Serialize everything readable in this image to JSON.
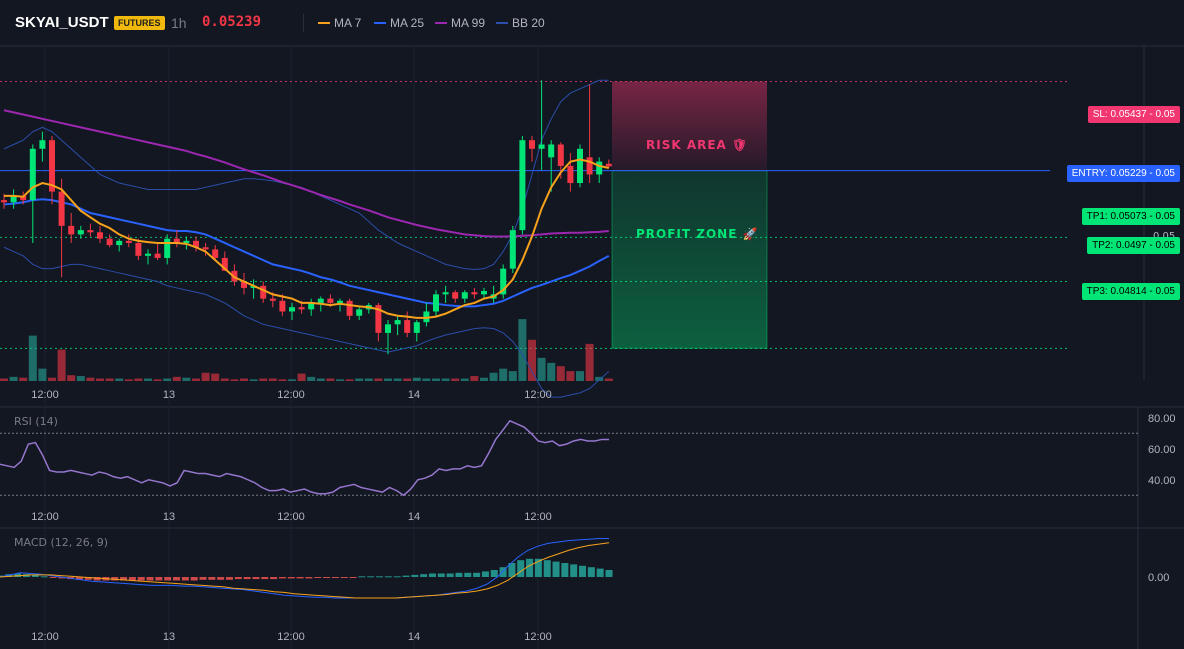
{
  "header": {
    "symbol": "SKYAI_USDT",
    "badge": "FUTURES",
    "timeframe": "1h",
    "last_price": "0.05239",
    "legend": [
      {
        "label": "MA 7",
        "color": "#f7a21b"
      },
      {
        "label": "MA 25",
        "color": "#2962ff"
      },
      {
        "label": "MA 99",
        "color": "#9c27b0"
      },
      {
        "label": "BB 20",
        "color": "#2a4eaa"
      }
    ]
  },
  "levels": {
    "sl": {
      "label": "SL: 0.05437",
      "suffix": "- 0.05",
      "value": 0.05437,
      "color": "#f23670"
    },
    "entry": {
      "label": "ENTRY: 0.05229",
      "suffix": "- 0.05",
      "value": 0.05229,
      "color": "#2962ff"
    },
    "tp1": {
      "label": "TP1: 0.05073",
      "suffix": "- 0.05",
      "value": 0.05073,
      "color": "#00e676"
    },
    "tp2": {
      "label": "TP2: 0.0497",
      "suffix": "- 0.05",
      "value": 0.0497,
      "color": "#00e676"
    },
    "tp3": {
      "label": "TP3: 0.04814",
      "suffix": "- 0.05",
      "value": 0.04814,
      "color": "#00e676"
    }
  },
  "zones": {
    "risk": "RISK AREA 🛡",
    "profit": "PROFIT ZONE 🚀"
  },
  "axis_labels": {
    "main_partial": "0.05"
  },
  "x_ticks": [
    "12:00",
    "13",
    "12:00",
    "14",
    "12:00"
  ],
  "rsi": {
    "label": "RSI (14)",
    "ticks": [
      "80.00",
      "60.00",
      "40.00"
    ]
  },
  "macd": {
    "label": "MACD (12, 26, 9)",
    "ticks": [
      "0.00"
    ]
  },
  "colors": {
    "up": "#26a69a",
    "up_bright": "#00e676",
    "down": "#f23645",
    "bg": "#131722"
  },
  "chart_data": {
    "type": "candlestick",
    "ylim": [
      0.0474,
      0.0552
    ],
    "candles": [
      {
        "o": 0.0516,
        "h": 0.05175,
        "l": 0.0514,
        "c": 0.05155
      },
      {
        "o": 0.05155,
        "h": 0.05185,
        "l": 0.0514,
        "c": 0.0517
      },
      {
        "o": 0.0517,
        "h": 0.0518,
        "l": 0.0515,
        "c": 0.0516
      },
      {
        "o": 0.0516,
        "h": 0.0529,
        "l": 0.0506,
        "c": 0.0528
      },
      {
        "o": 0.0528,
        "h": 0.0532,
        "l": 0.0525,
        "c": 0.053
      },
      {
        "o": 0.053,
        "h": 0.0531,
        "l": 0.0515,
        "c": 0.0518
      },
      {
        "o": 0.0518,
        "h": 0.0521,
        "l": 0.0498,
        "c": 0.051
      },
      {
        "o": 0.051,
        "h": 0.0513,
        "l": 0.0506,
        "c": 0.0508
      },
      {
        "o": 0.0508,
        "h": 0.051,
        "l": 0.0507,
        "c": 0.0509
      },
      {
        "o": 0.0509,
        "h": 0.05105,
        "l": 0.05075,
        "c": 0.05085
      },
      {
        "o": 0.05085,
        "h": 0.051,
        "l": 0.0506,
        "c": 0.0507
      },
      {
        "o": 0.0507,
        "h": 0.0508,
        "l": 0.0505,
        "c": 0.05055
      },
      {
        "o": 0.05055,
        "h": 0.0507,
        "l": 0.0504,
        "c": 0.05065
      },
      {
        "o": 0.05065,
        "h": 0.0508,
        "l": 0.0505,
        "c": 0.0506
      },
      {
        "o": 0.0506,
        "h": 0.0507,
        "l": 0.0502,
        "c": 0.0503
      },
      {
        "o": 0.0503,
        "h": 0.05045,
        "l": 0.0501,
        "c": 0.05035
      },
      {
        "o": 0.05035,
        "h": 0.0506,
        "l": 0.0502,
        "c": 0.05025
      },
      {
        "o": 0.05025,
        "h": 0.0508,
        "l": 0.0501,
        "c": 0.0507
      },
      {
        "o": 0.0507,
        "h": 0.0509,
        "l": 0.0505,
        "c": 0.0506
      },
      {
        "o": 0.0506,
        "h": 0.05075,
        "l": 0.05045,
        "c": 0.05065
      },
      {
        "o": 0.05065,
        "h": 0.05075,
        "l": 0.0504,
        "c": 0.0505
      },
      {
        "o": 0.0505,
        "h": 0.0506,
        "l": 0.0503,
        "c": 0.05045
      },
      {
        "o": 0.05045,
        "h": 0.05055,
        "l": 0.0502,
        "c": 0.05025
      },
      {
        "o": 0.05025,
        "h": 0.0504,
        "l": 0.05,
        "c": 0.04995
      },
      {
        "o": 0.04995,
        "h": 0.0501,
        "l": 0.0496,
        "c": 0.0497
      },
      {
        "o": 0.0497,
        "h": 0.0499,
        "l": 0.0494,
        "c": 0.04955
      },
      {
        "o": 0.04955,
        "h": 0.04975,
        "l": 0.0493,
        "c": 0.0496
      },
      {
        "o": 0.0496,
        "h": 0.0497,
        "l": 0.0492,
        "c": 0.0493
      },
      {
        "o": 0.0493,
        "h": 0.04945,
        "l": 0.0491,
        "c": 0.04925
      },
      {
        "o": 0.04925,
        "h": 0.0494,
        "l": 0.0489,
        "c": 0.049
      },
      {
        "o": 0.049,
        "h": 0.0492,
        "l": 0.0488,
        "c": 0.0491
      },
      {
        "o": 0.0491,
        "h": 0.04925,
        "l": 0.04895,
        "c": 0.04905
      },
      {
        "o": 0.04905,
        "h": 0.0493,
        "l": 0.0489,
        "c": 0.0492
      },
      {
        "o": 0.0492,
        "h": 0.04935,
        "l": 0.049,
        "c": 0.0493
      },
      {
        "o": 0.0493,
        "h": 0.0494,
        "l": 0.0491,
        "c": 0.0492
      },
      {
        "o": 0.0492,
        "h": 0.0493,
        "l": 0.049,
        "c": 0.04925
      },
      {
        "o": 0.04925,
        "h": 0.0493,
        "l": 0.0488,
        "c": 0.0489
      },
      {
        "o": 0.0489,
        "h": 0.0491,
        "l": 0.0488,
        "c": 0.04905
      },
      {
        "o": 0.04905,
        "h": 0.0492,
        "l": 0.04895,
        "c": 0.04915
      },
      {
        "o": 0.04915,
        "h": 0.0492,
        "l": 0.0483,
        "c": 0.0485
      },
      {
        "o": 0.0485,
        "h": 0.0488,
        "l": 0.048,
        "c": 0.0487
      },
      {
        "o": 0.0487,
        "h": 0.0489,
        "l": 0.04845,
        "c": 0.0488
      },
      {
        "o": 0.0488,
        "h": 0.049,
        "l": 0.0484,
        "c": 0.0485
      },
      {
        "o": 0.0485,
        "h": 0.0488,
        "l": 0.0483,
        "c": 0.04875
      },
      {
        "o": 0.04875,
        "h": 0.0492,
        "l": 0.04865,
        "c": 0.049
      },
      {
        "o": 0.049,
        "h": 0.0495,
        "l": 0.0489,
        "c": 0.0494
      },
      {
        "o": 0.0494,
        "h": 0.0496,
        "l": 0.0492,
        "c": 0.04945
      },
      {
        "o": 0.04945,
        "h": 0.0495,
        "l": 0.0492,
        "c": 0.0493
      },
      {
        "o": 0.0493,
        "h": 0.0495,
        "l": 0.0492,
        "c": 0.04945
      },
      {
        "o": 0.04945,
        "h": 0.04955,
        "l": 0.0493,
        "c": 0.0494
      },
      {
        "o": 0.0494,
        "h": 0.04955,
        "l": 0.0493,
        "c": 0.04948
      },
      {
        "o": 0.0493,
        "h": 0.0496,
        "l": 0.0492,
        "c": 0.0494
      },
      {
        "o": 0.0494,
        "h": 0.0501,
        "l": 0.0493,
        "c": 0.05
      },
      {
        "o": 0.05,
        "h": 0.051,
        "l": 0.0499,
        "c": 0.0509
      },
      {
        "o": 0.0509,
        "h": 0.0531,
        "l": 0.0508,
        "c": 0.053
      },
      {
        "o": 0.053,
        "h": 0.0531,
        "l": 0.0525,
        "c": 0.0528
      },
      {
        "o": 0.0528,
        "h": 0.0544,
        "l": 0.0523,
        "c": 0.0529
      },
      {
        "o": 0.0526,
        "h": 0.053,
        "l": 0.0518,
        "c": 0.0529
      },
      {
        "o": 0.0529,
        "h": 0.05295,
        "l": 0.0521,
        "c": 0.0524
      },
      {
        "o": 0.0524,
        "h": 0.0527,
        "l": 0.0518,
        "c": 0.052
      },
      {
        "o": 0.052,
        "h": 0.0529,
        "l": 0.0519,
        "c": 0.0528
      },
      {
        "o": 0.0526,
        "h": 0.0543,
        "l": 0.052,
        "c": 0.0522
      },
      {
        "o": 0.0522,
        "h": 0.0526,
        "l": 0.052,
        "c": 0.0525
      },
      {
        "o": 0.05245,
        "h": 0.05255,
        "l": 0.05235,
        "c": 0.05239
      }
    ],
    "volume": [
      3,
      5,
      4,
      55,
      15,
      4,
      38,
      7,
      6,
      4,
      3,
      3,
      3,
      2,
      3,
      3,
      2,
      3,
      5,
      4,
      3,
      10,
      9,
      3,
      2,
      3,
      2,
      3,
      3,
      2,
      2,
      9,
      5,
      3,
      3,
      2,
      2,
      3,
      3,
      3,
      3,
      3,
      3,
      4,
      3,
      3,
      3,
      3,
      3,
      6,
      4,
      10,
      15,
      12,
      75,
      50,
      28,
      22,
      18,
      12,
      12,
      45,
      5,
      3
    ],
    "ma7": [
      0.0517,
      0.0517,
      0.05168,
      0.0519,
      0.052,
      0.05195,
      0.05185,
      0.0516,
      0.05135,
      0.0512,
      0.05105,
      0.05095,
      0.0508,
      0.0507,
      0.05065,
      0.05062,
      0.0506,
      0.0506,
      0.0506,
      0.05058,
      0.0505,
      0.0504,
      0.0502,
      0.05,
      0.0498,
      0.0497,
      0.0496,
      0.0495,
      0.0494,
      0.04935,
      0.0493,
      0.0492,
      0.0492,
      0.04918,
      0.04915,
      0.04918,
      0.04915,
      0.04912,
      0.0491,
      0.04905,
      0.04895,
      0.0489,
      0.04888,
      0.04885,
      0.04885,
      0.04888,
      0.04895,
      0.04905,
      0.04915,
      0.0492,
      0.0493,
      0.04935,
      0.0495,
      0.04975,
      0.0502,
      0.05075,
      0.0514,
      0.0519,
      0.05225,
      0.0525,
      0.05255,
      0.0525,
      0.0524,
      0.05235
    ],
    "ma25": [
      0.0515,
      0.05152,
      0.05155,
      0.0516,
      0.05162,
      0.0516,
      0.05155,
      0.0515,
      0.0514,
      0.0513,
      0.05125,
      0.0512,
      0.05115,
      0.0511,
      0.05105,
      0.051,
      0.05095,
      0.0509,
      0.05088,
      0.05088,
      0.05085,
      0.0508,
      0.0507,
      0.0506,
      0.0505,
      0.0504,
      0.0503,
      0.0502,
      0.0501,
      0.05005,
      0.05,
      0.04995,
      0.04988,
      0.0498,
      0.04975,
      0.04968,
      0.0496,
      0.04955,
      0.0495,
      0.04945,
      0.0494,
      0.04935,
      0.0493,
      0.04925,
      0.0492,
      0.04918,
      0.04915,
      0.04913,
      0.04912,
      0.04912,
      0.04915,
      0.04918,
      0.04925,
      0.04935,
      0.04945,
      0.04955,
      0.04962,
      0.0497,
      0.04978,
      0.04985,
      0.04995,
      0.05005,
      0.05018,
      0.0503
    ],
    "ma99": [
      0.0537,
      0.05365,
      0.0536,
      0.05355,
      0.0535,
      0.05345,
      0.0534,
      0.05335,
      0.0533,
      0.05325,
      0.0532,
      0.05315,
      0.0531,
      0.05305,
      0.053,
      0.05295,
      0.0529,
      0.05285,
      0.0528,
      0.05275,
      0.05268,
      0.05262,
      0.05255,
      0.05248,
      0.0524,
      0.05232,
      0.05225,
      0.05218,
      0.0521,
      0.05202,
      0.05195,
      0.05188,
      0.0518,
      0.05172,
      0.05165,
      0.05158,
      0.0515,
      0.05143,
      0.05136,
      0.05128,
      0.0512,
      0.05114,
      0.05108,
      0.05102,
      0.05097,
      0.05092,
      0.05088,
      0.05084,
      0.0508,
      0.05078,
      0.05076,
      0.05075,
      0.05075,
      0.05075,
      0.05077,
      0.05078,
      0.0508,
      0.05082,
      0.05083,
      0.05084,
      0.05084,
      0.05085,
      0.05086,
      0.05088
    ],
    "bb_upper": [
      0.0528,
      0.0529,
      0.053,
      0.0532,
      0.0533,
      0.0532,
      0.053,
      0.0528,
      0.0526,
      0.0524,
      0.0522,
      0.0521,
      0.052,
      0.05195,
      0.0519,
      0.05185,
      0.05185,
      0.05185,
      0.05185,
      0.05185,
      0.05185,
      0.0519,
      0.05195,
      0.052,
      0.05205,
      0.0521,
      0.0521,
      0.05208,
      0.05205,
      0.052,
      0.05195,
      0.0519,
      0.0518,
      0.0517,
      0.0516,
      0.0515,
      0.0514,
      0.0513,
      0.0511,
      0.0509,
      0.05075,
      0.0506,
      0.0505,
      0.0504,
      0.0503,
      0.0502,
      0.0501,
      0.05005,
      0.05,
      0.04998,
      0.05,
      0.0501,
      0.0504,
      0.0508,
      0.0514,
      0.0522,
      0.053,
      0.0535,
      0.0539,
      0.0541,
      0.0542,
      0.0543,
      0.0544,
      0.0544
    ],
    "bb_lower": [
      0.0505,
      0.0504,
      0.0503,
      0.0501,
      0.05,
      0.05,
      0.05005,
      0.0501,
      0.0501,
      0.05005,
      0.05,
      0.04995,
      0.0499,
      0.04985,
      0.0498,
      0.04975,
      0.0497,
      0.0496,
      0.04955,
      0.0495,
      0.04945,
      0.0494,
      0.0493,
      0.0492,
      0.04905,
      0.0489,
      0.0488,
      0.0487,
      0.04865,
      0.0486,
      0.04855,
      0.0485,
      0.04845,
      0.0484,
      0.04835,
      0.0483,
      0.04825,
      0.0482,
      0.04815,
      0.0481,
      0.04805,
      0.0481,
      0.04815,
      0.0482,
      0.0483,
      0.04838,
      0.04845,
      0.0485,
      0.04855,
      0.0486,
      0.04862,
      0.0486,
      0.0485,
      0.0483,
      0.048,
      0.0476,
      0.0472,
      0.047,
      0.047,
      0.04705,
      0.0471,
      0.0472,
      0.0474,
      0.0476
    ],
    "rsi": [
      50,
      49,
      48,
      52,
      63,
      64,
      56,
      46,
      45,
      45,
      46,
      45,
      44,
      43,
      45,
      44,
      42,
      41,
      42,
      40,
      38,
      40,
      39,
      38,
      36,
      38,
      46,
      45,
      44,
      44,
      43,
      42,
      44,
      43,
      42,
      40,
      38,
      35,
      33,
      33,
      34,
      32,
      33,
      34,
      32,
      31,
      31,
      32,
      35,
      36,
      37,
      35,
      34,
      33,
      32,
      35,
      33,
      30,
      34,
      40,
      41,
      43,
      47,
      46,
      47,
      47,
      49,
      48,
      49,
      57,
      66,
      72,
      78,
      76,
      74,
      70,
      65,
      64,
      65,
      62,
      63,
      65,
      66,
      65,
      65,
      66,
      66
    ],
    "macd_hist": [
      2,
      4,
      5,
      4,
      3,
      1,
      -1,
      -2,
      -3,
      -4,
      -4,
      -5,
      -5,
      -5,
      -5,
      -5,
      -5,
      -5,
      -5,
      -5,
      -5,
      -5,
      -5,
      -4,
      -4,
      -4,
      -4,
      -3,
      -3,
      -3,
      -3,
      -3,
      -2,
      -2,
      -2,
      -2,
      -1,
      -1,
      -1,
      -1,
      -1,
      1,
      1,
      1,
      1,
      1,
      2,
      3,
      4,
      5,
      5,
      5,
      6,
      6,
      6,
      8,
      10,
      14,
      20,
      24,
      26,
      26,
      24,
      22,
      20,
      18,
      16,
      14,
      12,
      10
    ],
    "macd_line": [
      0,
      3,
      6,
      5,
      4,
      2,
      0,
      -2,
      -4,
      -6,
      -7,
      -8,
      -9,
      -10,
      -11,
      -12,
      -12,
      -12,
      -13,
      -13,
      -14,
      -15,
      -16,
      -17,
      -18,
      -20,
      -22,
      -24,
      -26,
      -27,
      -28,
      -29,
      -29,
      -30,
      -30,
      -30,
      -30,
      -30,
      -30,
      -30,
      -29,
      -28,
      -27,
      -26,
      -24,
      -22,
      -20,
      -16,
      -10,
      0,
      15,
      28,
      38,
      44,
      48,
      50,
      52,
      53,
      54,
      55,
      55
    ],
    "macd_signal": [
      0,
      1,
      2,
      3,
      3,
      3,
      2,
      1,
      0,
      -1,
      -2,
      -3,
      -4,
      -5,
      -6,
      -7,
      -8,
      -9,
      -10,
      -11,
      -12,
      -13,
      -14,
      -16,
      -17,
      -18,
      -19,
      -21,
      -22,
      -24,
      -25,
      -26,
      -27,
      -28,
      -29,
      -30,
      -30,
      -30,
      -30,
      -30,
      -29,
      -28,
      -27,
      -26,
      -25,
      -23,
      -22,
      -20,
      -17,
      -12,
      -5,
      5,
      15,
      22,
      28,
      33,
      38,
      42,
      45,
      47,
      49
    ]
  }
}
